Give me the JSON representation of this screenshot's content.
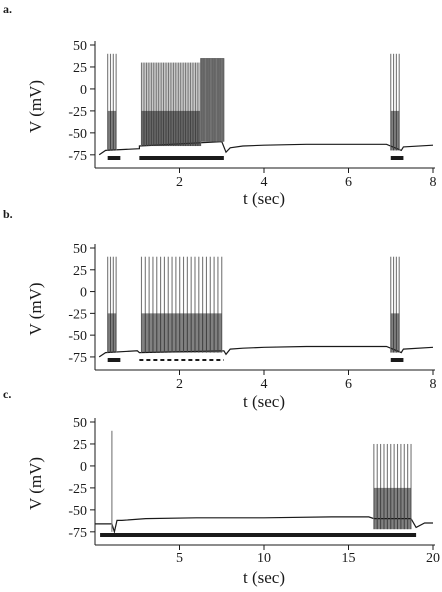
{
  "chart_data": [
    {
      "type": "line",
      "panel_label": "a.",
      "title": "",
      "xlabel": "t (sec)",
      "ylabel": "V (mV)",
      "xlim": [
        0,
        8
      ],
      "ylim": [
        -90,
        50
      ],
      "xticks": [
        2,
        4,
        6,
        8
      ],
      "yticks": [
        50,
        25,
        0,
        -25,
        -50,
        -75
      ],
      "series": [
        {
          "trace": [
            [
              0.1,
              -75
            ],
            [
              0.25,
              -70
            ],
            [
              1.05,
              -68
            ],
            [
              1.05,
              -65
            ],
            [
              3.0,
              -60
            ],
            [
              3.1,
              -72
            ],
            [
              3.2,
              -67
            ],
            [
              3.5,
              -65
            ],
            [
              4.0,
              -64
            ],
            [
              5.0,
              -63
            ],
            [
              6.0,
              -63
            ],
            [
              6.9,
              -63
            ],
            [
              7.25,
              -70
            ],
            [
              7.3,
              -66
            ],
            [
              8.0,
              -64
            ]
          ],
          "bursts": [
            {
              "t_start": 0.3,
              "t_end": 0.5,
              "spikes": 4,
              "peak": 40,
              "trough": -70
            },
            {
              "t_start": 1.1,
              "t_end": 2.5,
              "spikes": 36,
              "peak": 30,
              "trough": -65
            },
            {
              "t_start": 2.5,
              "t_end": 3.05,
              "spikes": 20,
              "peak": 35,
              "trough": -60,
              "filled": true
            },
            {
              "t_start": 7.0,
              "t_end": 7.2,
              "spikes": 4,
              "peak": 40,
              "trough": -70
            }
          ]
        }
      ],
      "stimulus_bars": [
        {
          "t_start": 0.3,
          "t_end": 0.6,
          "style": "solid"
        },
        {
          "t_start": 1.05,
          "t_end": 3.05,
          "style": "solid"
        },
        {
          "t_start": 7.0,
          "t_end": 7.3,
          "style": "solid"
        }
      ]
    },
    {
      "type": "line",
      "panel_label": "b.",
      "title": "",
      "xlabel": "t (sec)",
      "ylabel": "V (mV)",
      "xlim": [
        0,
        8
      ],
      "ylim": [
        -90,
        50
      ],
      "xticks": [
        2,
        4,
        6,
        8
      ],
      "yticks": [
        50,
        25,
        0,
        -25,
        -50,
        -75
      ],
      "series": [
        {
          "trace": [
            [
              0.1,
              -75
            ],
            [
              0.25,
              -70
            ],
            [
              1.0,
              -68
            ],
            [
              1.05,
              -70
            ],
            [
              3.05,
              -68
            ],
            [
              3.1,
              -72
            ],
            [
              3.2,
              -66
            ],
            [
              3.5,
              -65
            ],
            [
              4.0,
              -64
            ],
            [
              5.0,
              -63
            ],
            [
              6.0,
              -63
            ],
            [
              6.9,
              -63
            ],
            [
              7.25,
              -70
            ],
            [
              7.3,
              -66
            ],
            [
              8.0,
              -64
            ]
          ],
          "bursts": [
            {
              "t_start": 0.3,
              "t_end": 0.5,
              "spikes": 4,
              "peak": 40,
              "trough": -70
            },
            {
              "t_start": 1.1,
              "t_end": 3.0,
              "spikes": 22,
              "peak": 40,
              "trough": -70
            },
            {
              "t_start": 7.0,
              "t_end": 7.2,
              "spikes": 4,
              "peak": 40,
              "trough": -70
            }
          ]
        }
      ],
      "stimulus_bars": [
        {
          "t_start": 0.3,
          "t_end": 0.6,
          "style": "solid"
        },
        {
          "t_start": 1.05,
          "t_end": 3.05,
          "style": "dashed"
        },
        {
          "t_start": 7.0,
          "t_end": 7.3,
          "style": "solid"
        }
      ]
    },
    {
      "type": "line",
      "panel_label": "c.",
      "title": "",
      "xlabel": "t (sec)",
      "ylabel": "V (mV)",
      "xlim": [
        0,
        20
      ],
      "ylim": [
        -90,
        50
      ],
      "xticks": [
        5,
        10,
        15,
        20
      ],
      "yticks": [
        50,
        25,
        0,
        -25,
        -50,
        -75
      ],
      "series": [
        {
          "trace": [
            [
              0.0,
              -66
            ],
            [
              1.0,
              -66
            ],
            [
              1.15,
              -75
            ],
            [
              1.3,
              -62
            ],
            [
              1.6,
              -62
            ],
            [
              3.0,
              -60
            ],
            [
              6.0,
              -59
            ],
            [
              10.0,
              -59
            ],
            [
              14.0,
              -58
            ],
            [
              16.2,
              -58
            ],
            [
              16.5,
              -60
            ],
            [
              18.7,
              -60
            ],
            [
              19.0,
              -70
            ],
            [
              19.5,
              -65
            ],
            [
              20.0,
              -65
            ]
          ],
          "bursts": [
            {
              "t_start": 1.0,
              "t_end": 1.0,
              "spikes": 1,
              "peak": 40,
              "trough": -75
            },
            {
              "t_start": 16.5,
              "t_end": 18.7,
              "spikes": 12,
              "peak": 25,
              "trough": -72
            }
          ]
        }
      ],
      "stimulus_bars": [
        {
          "t_start": 0.3,
          "t_end": 19.0,
          "style": "solid"
        }
      ]
    }
  ]
}
